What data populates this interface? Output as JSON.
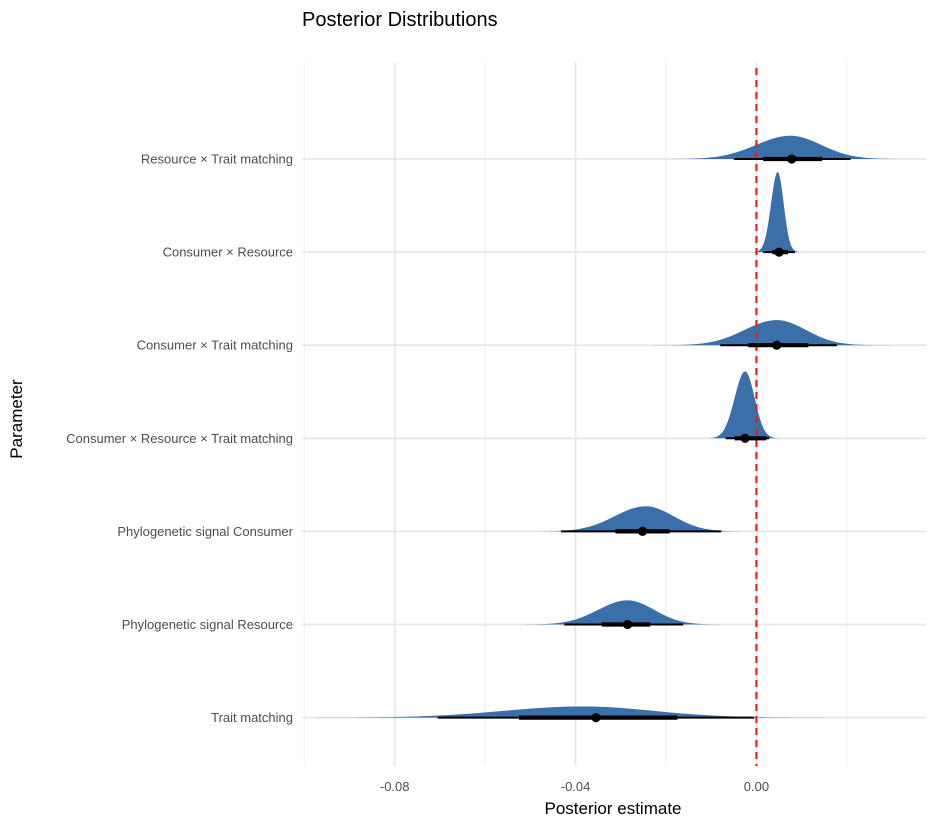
{
  "chart_data": {
    "type": "ridgeline",
    "title": "Posterior Distributions",
    "xlabel": "Posterior estimate",
    "ylabel": "Parameter",
    "xlim": [
      -0.1005,
      0.0375
    ],
    "x_ticks": [
      -0.08,
      -0.04,
      0.0
    ],
    "x_tick_labels": [
      "-0.08",
      "-0.04",
      "0.00"
    ],
    "x_minor_gridlines": [
      -0.1,
      -0.06,
      -0.02,
      0.02
    ],
    "reference_line": {
      "x": 0.0,
      "style": "dashed",
      "color": "#ee1c1c"
    },
    "fill_color": "#3a6fa9",
    "grid": true,
    "parameters": [
      {
        "label": "Resource × Trait matching",
        "mean": 0.0078,
        "mode": 0.0075,
        "sd": 0.0072,
        "height": 0.25,
        "ci_inner": [
          0.0015,
          0.0145
        ],
        "ci_outer": [
          -0.005,
          0.0208
        ]
      },
      {
        "label": "Consumer × Resource",
        "mean": 0.005,
        "mode": 0.0047,
        "sd": 0.0014,
        "height": 0.86,
        "ci_inner": [
          0.0035,
          0.007
        ],
        "ci_outer": [
          0.0015,
          0.0085
        ]
      },
      {
        "label": "Consumer × Trait matching",
        "mean": 0.0045,
        "mode": 0.0045,
        "sd": 0.0068,
        "height": 0.27,
        "ci_inner": [
          -0.0018,
          0.0115
        ],
        "ci_outer": [
          -0.008,
          0.0178
        ]
      },
      {
        "label": "Consumer × Resource × Trait matching",
        "mean": -0.0025,
        "mode": -0.0025,
        "sd": 0.0022,
        "height": 0.72,
        "ci_inner": [
          -0.0048,
          0.0022
        ],
        "ci_outer": [
          -0.0068,
          0.0028
        ]
      },
      {
        "label": "Phylogenetic signal Consumer",
        "mean": -0.0252,
        "mode": -0.0245,
        "sd": 0.0065,
        "height": 0.27,
        "ci_inner": [
          -0.0312,
          -0.0192
        ],
        "ci_outer": [
          -0.0432,
          -0.0078
        ]
      },
      {
        "label": "Phylogenetic signal Resource",
        "mean": -0.0285,
        "mode": -0.0285,
        "sd": 0.0062,
        "height": 0.26,
        "ci_inner": [
          -0.0342,
          -0.0235
        ],
        "ci_outer": [
          -0.0425,
          -0.0162
        ]
      },
      {
        "label": "Trait matching",
        "mean": -0.0355,
        "mode": -0.0385,
        "sd": 0.0165,
        "height": 0.12,
        "ci_inner": [
          -0.0525,
          -0.0175
        ],
        "ci_outer": [
          -0.0705,
          -0.0005
        ]
      }
    ]
  }
}
